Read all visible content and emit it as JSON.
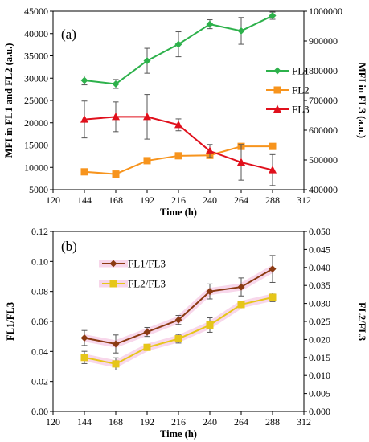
{
  "chart_data": [
    {
      "type": "line",
      "panel_label": "(a)",
      "xlabel": "Time (h)",
      "ylabel": "MFI in FL1 and FL2 (a.u.)",
      "y2label": "MFI in FL3 (a.u.)",
      "xlim": [
        120,
        312
      ],
      "xticks": [
        120,
        144,
        168,
        192,
        216,
        240,
        264,
        288,
        312
      ],
      "ylim": [
        5000,
        45000
      ],
      "yticks": [
        5000,
        10000,
        15000,
        20000,
        25000,
        30000,
        35000,
        40000,
        45000
      ],
      "y2lim": [
        400000,
        1000000
      ],
      "y2ticks": [
        400000,
        500000,
        600000,
        700000,
        800000,
        900000,
        1000000
      ],
      "legend_position": "right",
      "x": [
        144,
        168,
        192,
        216,
        240,
        264,
        288
      ],
      "series": [
        {
          "name": "FL1",
          "axis": "left",
          "marker": "diamond",
          "color": "#2db14b",
          "values": [
            29500,
            28700,
            33900,
            37600,
            42100,
            40600,
            44000
          ],
          "errors": [
            1000,
            1000,
            2800,
            2800,
            1000,
            3000,
            800
          ]
        },
        {
          "name": "FL2",
          "axis": "left",
          "marker": "square",
          "color": "#f7941d",
          "values": [
            9000,
            8500,
            11500,
            12600,
            12700,
            14700,
            14700
          ],
          "errors": [
            0,
            0,
            0,
            0,
            0,
            0,
            0
          ]
        },
        {
          "name": "FL3",
          "axis": "right",
          "marker": "triangle",
          "color": "#e0101c",
          "values": [
            636000,
            645000,
            645000,
            618000,
            530000,
            492000,
            466000
          ],
          "errors": [
            62000,
            50000,
            75000,
            20000,
            22000,
            60000,
            52000
          ]
        }
      ]
    },
    {
      "type": "line",
      "panel_label": "(b)",
      "xlabel": "Time (h)",
      "ylabel": "FL1/FL3",
      "y2label": "FL2/FL3",
      "xlim": [
        120,
        312
      ],
      "xticks": [
        120,
        144,
        168,
        192,
        216,
        240,
        264,
        288,
        312
      ],
      "ylim": [
        0,
        0.12
      ],
      "yticks": [
        "0.00",
        "0.02",
        "0.04",
        "0.06",
        "0.08",
        "0.10",
        "0.12"
      ],
      "y2lim": [
        0,
        0.05
      ],
      "y2ticks": [
        "0.000",
        "0.005",
        "0.010",
        "0.015",
        "0.020",
        "0.025",
        "0.030",
        "0.035",
        "0.040",
        "0.045",
        "0.050"
      ],
      "legend_position": "top-left",
      "x": [
        144,
        168,
        192,
        216,
        240,
        264,
        288
      ],
      "series": [
        {
          "name": "FL1/FL3",
          "axis": "left",
          "marker": "diamond",
          "color": "#8b3a12",
          "values": [
            0.049,
            0.045,
            0.053,
            0.061,
            0.08,
            0.083,
            0.095
          ],
          "errors": [
            0.005,
            0.006,
            0.003,
            0.003,
            0.005,
            0.006,
            0.009
          ]
        },
        {
          "name": "FL2/FL3",
          "axis": "right",
          "marker": "square",
          "color": "#e6c619",
          "values": [
            0.015,
            0.0132,
            0.0178,
            0.0202,
            0.024,
            0.0297,
            0.0317
          ],
          "errors": [
            0.0017,
            0.0017,
            0.0,
            0.0012,
            0.002,
            0.0,
            0.0012
          ]
        }
      ]
    }
  ]
}
